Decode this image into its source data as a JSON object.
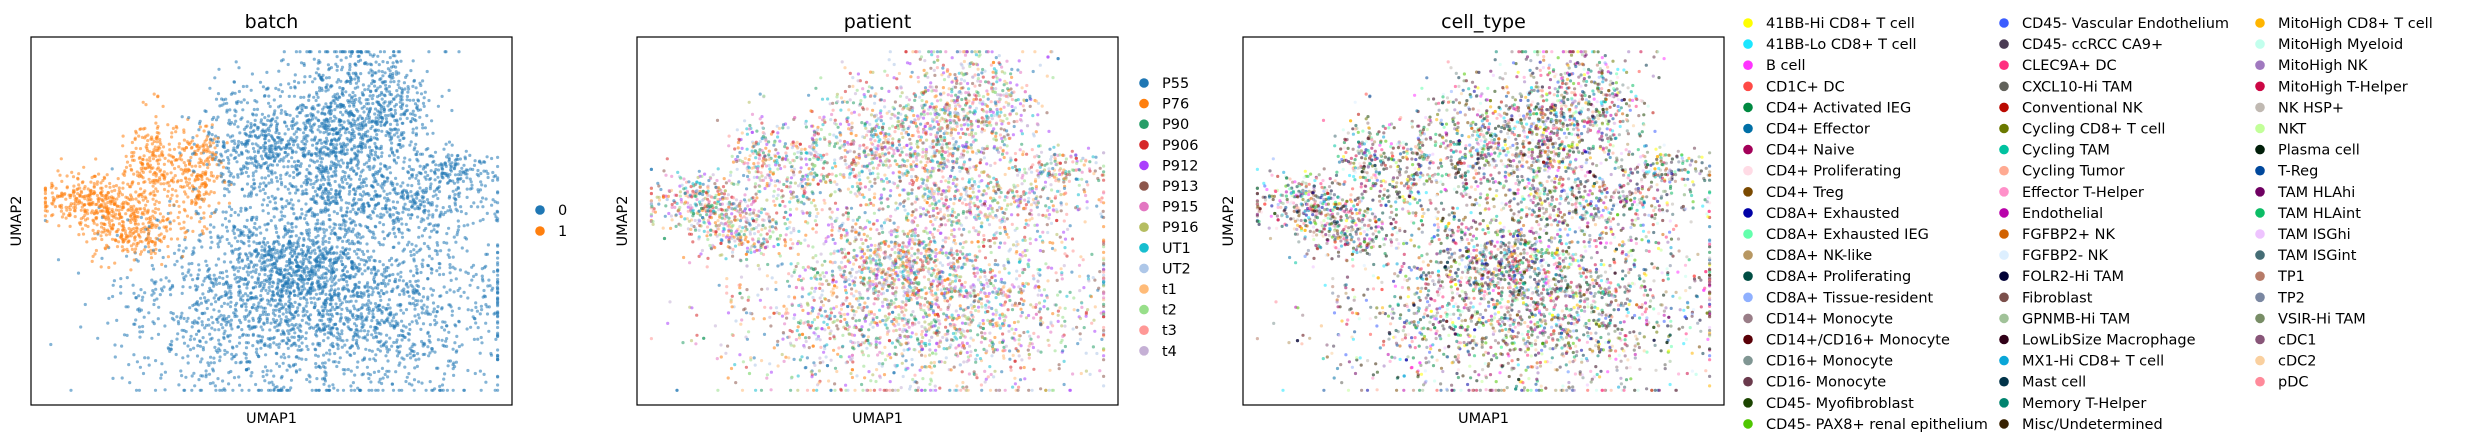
{
  "chart_data": [
    {
      "type": "scatter",
      "title": "batch",
      "xlabel": "UMAP1",
      "ylabel": "UMAP2",
      "grid": false,
      "legend": "right",
      "series": [
        {
          "name": "0",
          "color": "#1f77b4"
        },
        {
          "name": "1",
          "color": "#ff7f0e"
        }
      ]
    },
    {
      "type": "scatter",
      "title": "patient",
      "xlabel": "UMAP1",
      "ylabel": "UMAP2",
      "grid": false,
      "legend": "right",
      "series": [
        {
          "name": "P55",
          "color": "#1f77b4"
        },
        {
          "name": "P76",
          "color": "#ff7f0e"
        },
        {
          "name": "P90",
          "color": "#279e68"
        },
        {
          "name": "P906",
          "color": "#d62728"
        },
        {
          "name": "P912",
          "color": "#aa40fc"
        },
        {
          "name": "P913",
          "color": "#8c564b"
        },
        {
          "name": "P915",
          "color": "#e377c2"
        },
        {
          "name": "P916",
          "color": "#b5bd61"
        },
        {
          "name": "UT1",
          "color": "#17becf"
        },
        {
          "name": "UT2",
          "color": "#aec7e8"
        },
        {
          "name": "t1",
          "color": "#ffbb78"
        },
        {
          "name": "t2",
          "color": "#98df8a"
        },
        {
          "name": "t3",
          "color": "#ff9896"
        },
        {
          "name": "t4",
          "color": "#c5b0d5"
        }
      ]
    },
    {
      "type": "scatter",
      "title": "cell_type",
      "xlabel": "UMAP1",
      "ylabel": "UMAP2",
      "grid": false,
      "legend": "right",
      "series": [
        {
          "name": "41BB-Hi CD8+ T cell",
          "color": "#ffff00"
        },
        {
          "name": "41BB-Lo CD8+ T cell",
          "color": "#1ce6ff"
        },
        {
          "name": "B cell",
          "color": "#ff34ff"
        },
        {
          "name": "CD1C+ DC",
          "color": "#ff4a46"
        },
        {
          "name": "CD4+ Activated IEG",
          "color": "#008941"
        },
        {
          "name": "CD4+ Effector",
          "color": "#006fa6"
        },
        {
          "name": "CD4+ Naive",
          "color": "#a30059"
        },
        {
          "name": "CD4+ Proliferating",
          "color": "#ffdbe5"
        },
        {
          "name": "CD4+ Treg",
          "color": "#7a4900"
        },
        {
          "name": "CD8A+ Exhausted",
          "color": "#0000a6"
        },
        {
          "name": "CD8A+ Exhausted IEG",
          "color": "#63ffac"
        },
        {
          "name": "CD8A+ NK-like",
          "color": "#b79762"
        },
        {
          "name": "CD8A+ Proliferating",
          "color": "#004d43"
        },
        {
          "name": "CD8A+ Tissue-resident",
          "color": "#8fb0ff"
        },
        {
          "name": "CD14+ Monocyte",
          "color": "#997d87"
        },
        {
          "name": "CD14+/CD16+ Monocyte",
          "color": "#5a0007"
        },
        {
          "name": "CD16+ Monocyte",
          "color": "#809693"
        },
        {
          "name": "CD16- Monocyte",
          "color": "#6a3a4c"
        },
        {
          "name": "CD45- Myofibroblast",
          "color": "#1b4400"
        },
        {
          "name": "CD45- PAX8+ renal epithelium",
          "color": "#4fc601"
        },
        {
          "name": "CD45- Vascular Endothelium",
          "color": "#3b5dff"
        },
        {
          "name": "CD45- ccRCC CA9+",
          "color": "#4a3b53"
        },
        {
          "name": "CLEC9A+ DC",
          "color": "#ff2f80"
        },
        {
          "name": "CXCL10-Hi TAM",
          "color": "#61615a"
        },
        {
          "name": "Conventional NK",
          "color": "#ba0900"
        },
        {
          "name": "Cycling CD8+ T cell",
          "color": "#6b7900"
        },
        {
          "name": "Cycling TAM",
          "color": "#00c2a0"
        },
        {
          "name": "Cycling Tumor",
          "color": "#ffaa92"
        },
        {
          "name": "Effector T-Helper",
          "color": "#ff90c9"
        },
        {
          "name": "Endothelial",
          "color": "#b903aa"
        },
        {
          "name": "FGFBP2+ NK",
          "color": "#d16100"
        },
        {
          "name": "FGFBP2- NK",
          "color": "#ddefff"
        },
        {
          "name": "FOLR2-Hi TAM",
          "color": "#000035"
        },
        {
          "name": "Fibroblast",
          "color": "#7b4f4b"
        },
        {
          "name": "GPNMB-Hi TAM",
          "color": "#a1c299"
        },
        {
          "name": "LowLibSize Macrophage",
          "color": "#300018"
        },
        {
          "name": "MX1-Hi CD8+ T cell",
          "color": "#0aa6d8"
        },
        {
          "name": "Mast cell",
          "color": "#013349"
        },
        {
          "name": "Memory T-Helper",
          "color": "#00846f"
        },
        {
          "name": "Misc/Undetermined",
          "color": "#372101"
        },
        {
          "name": "MitoHigh CD8+ T cell",
          "color": "#ffb500"
        },
        {
          "name": "MitoHigh Myeloid",
          "color": "#c2ffed"
        },
        {
          "name": "MitoHigh NK",
          "color": "#a079bf"
        },
        {
          "name": "MitoHigh T-Helper",
          "color": "#cc0744"
        },
        {
          "name": "NK HSP+",
          "color": "#c0b9b2"
        },
        {
          "name": "NKT",
          "color": "#c2ff99"
        },
        {
          "name": "Plasma cell",
          "color": "#001e09"
        },
        {
          "name": "T-Reg",
          "color": "#00489c"
        },
        {
          "name": "TAM HLAhi",
          "color": "#6f0062"
        },
        {
          "name": "TAM HLAint",
          "color": "#0cbd66"
        },
        {
          "name": "TAM ISGhi",
          "color": "#eec3ff"
        },
        {
          "name": "TAM ISGint",
          "color": "#456d75"
        },
        {
          "name": "TP1",
          "color": "#b77b68"
        },
        {
          "name": "TP2",
          "color": "#7a87a1"
        },
        {
          "name": "VSIR-Hi TAM",
          "color": "#788d66"
        },
        {
          "name": "cDC1",
          "color": "#885578"
        },
        {
          "name": "cDC2",
          "color": "#fad09f"
        },
        {
          "name": "pDC",
          "color": "#ff8a9a"
        }
      ]
    }
  ]
}
